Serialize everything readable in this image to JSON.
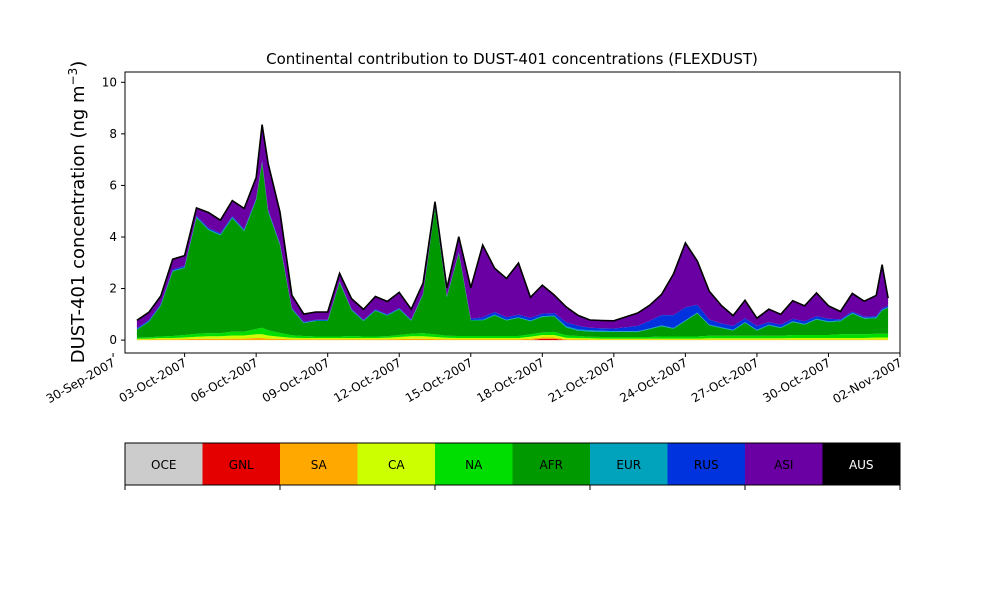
{
  "chart_data": {
    "type": "area",
    "stacked": true,
    "title": "Continental contribution to DUST-401 concentrations (FLEXDUST)",
    "ylabel": "DUST-401 concentration (ng m",
    "ylabel_superscript": "−3",
    "ylabel_tail": ")",
    "xlabel": "",
    "xlim": [
      "2007-09-30T12:00",
      "2007-11-02T00:00"
    ],
    "ylim": [
      -0.5,
      10.4
    ],
    "y_ticks": [
      0,
      2,
      4,
      6,
      8,
      10
    ],
    "x_ticks": [
      "30-Sep-2007",
      "03-Oct-2007",
      "06-Oct-2007",
      "09-Oct-2007",
      "12-Oct-2007",
      "15-Oct-2007",
      "18-Oct-2007",
      "21-Oct-2007",
      "24-Oct-2007",
      "27-Oct-2007",
      "30-Oct-2007",
      "02-Nov-2007"
    ],
    "grid": false,
    "categories_legend": [
      "OCE",
      "GNL",
      "SA",
      "CA",
      "NA",
      "AFR",
      "EUR",
      "RUS",
      "ASI",
      "AUS"
    ],
    "series_colors": {
      "OCE": "#cccccc",
      "GNL": "#e50000",
      "SA": "#ffa900",
      "CA": "#ccff00",
      "NA": "#00dd00",
      "AFR": "#009900",
      "EUR": "#00a3bb",
      "RUS": "#0033dd",
      "ASI": "#6a00a3",
      "AUS": "#000000"
    },
    "total_line_color": "#000000",
    "x": [
      "2007-10-01",
      "2007-10-01T12:00",
      "2007-10-02",
      "2007-10-02T12:00",
      "2007-10-03",
      "2007-10-03T12:00",
      "2007-10-04",
      "2007-10-04T12:00",
      "2007-10-05",
      "2007-10-05T12:00",
      "2007-10-06",
      "2007-10-06T06:00",
      "2007-10-06T12:00",
      "2007-10-07",
      "2007-10-07T12:00",
      "2007-10-08",
      "2007-10-08T12:00",
      "2007-10-09",
      "2007-10-09T12:00",
      "2007-10-10",
      "2007-10-10T12:00",
      "2007-10-11",
      "2007-10-11T12:00",
      "2007-10-12",
      "2007-10-12T12:00",
      "2007-10-13",
      "2007-10-13T12:00",
      "2007-10-14",
      "2007-10-14T12:00",
      "2007-10-15",
      "2007-10-15T12:00",
      "2007-10-16",
      "2007-10-16T12:00",
      "2007-10-17",
      "2007-10-17T12:00",
      "2007-10-18",
      "2007-10-18T12:00",
      "2007-10-19",
      "2007-10-19T12:00",
      "2007-10-20",
      "2007-10-20T12:00",
      "2007-10-21",
      "2007-10-21T12:00",
      "2007-10-22",
      "2007-10-22T12:00",
      "2007-10-23",
      "2007-10-23T12:00",
      "2007-10-24",
      "2007-10-24T12:00",
      "2007-10-25",
      "2007-10-25T12:00",
      "2007-10-26",
      "2007-10-26T12:00",
      "2007-10-27",
      "2007-10-27T12:00",
      "2007-10-28",
      "2007-10-28T12:00",
      "2007-10-29",
      "2007-10-29T12:00",
      "2007-10-30",
      "2007-10-30T12:00",
      "2007-10-31",
      "2007-10-31T12:00",
      "2007-11-01",
      "2007-11-01T06:00",
      "2007-11-01T12:00"
    ],
    "series": [
      {
        "name": "OCE",
        "values": [
          0,
          0,
          0,
          0,
          0,
          0,
          0,
          0,
          0,
          0,
          0,
          0,
          0,
          0,
          0,
          0,
          0,
          0,
          0,
          0,
          0,
          0,
          0,
          0,
          0,
          0,
          0,
          0,
          0,
          0,
          0,
          0,
          0,
          0,
          0,
          0,
          0,
          0,
          0,
          0,
          0,
          0,
          0,
          0,
          0,
          0,
          0,
          0,
          0,
          0,
          0,
          0,
          0,
          0,
          0,
          0,
          0,
          0,
          0,
          0,
          0,
          0,
          0,
          0,
          0,
          0
        ]
      },
      {
        "name": "GNL",
        "values": [
          0,
          0,
          0,
          0,
          0,
          0,
          0,
          0,
          0,
          0,
          0,
          0,
          0,
          0,
          0,
          0,
          0,
          0,
          0,
          0,
          0,
          0,
          0,
          0,
          0,
          0,
          0,
          0,
          0,
          0,
          0,
          0,
          0,
          0,
          0,
          0.05,
          0.05,
          0,
          0,
          0,
          0,
          0,
          0,
          0,
          0,
          0,
          0,
          0,
          0,
          0,
          0,
          0,
          0,
          0,
          0,
          0,
          0,
          0,
          0,
          0,
          0,
          0,
          0,
          0,
          0,
          0
        ]
      },
      {
        "name": "SA",
        "values": [
          0.02,
          0.02,
          0.03,
          0.03,
          0.04,
          0.05,
          0.05,
          0.05,
          0.06,
          0.06,
          0.08,
          0.08,
          0.06,
          0.05,
          0.03,
          0.03,
          0.03,
          0.03,
          0.03,
          0.03,
          0.03,
          0.03,
          0.03,
          0.04,
          0.05,
          0.05,
          0.04,
          0.03,
          0.03,
          0.03,
          0.03,
          0.03,
          0.03,
          0.03,
          0.05,
          0.05,
          0.05,
          0.03,
          0.03,
          0.02,
          0.02,
          0.02,
          0.02,
          0.02,
          0.02,
          0.02,
          0.02,
          0.02,
          0.02,
          0.02,
          0.02,
          0.02,
          0.02,
          0.02,
          0.02,
          0.02,
          0.02,
          0.02,
          0.02,
          0.02,
          0.02,
          0.02,
          0.02,
          0.02,
          0.02,
          0.02
        ]
      },
      {
        "name": "CA",
        "values": [
          0.03,
          0.04,
          0.05,
          0.05,
          0.06,
          0.08,
          0.1,
          0.1,
          0.12,
          0.12,
          0.15,
          0.15,
          0.12,
          0.08,
          0.06,
          0.05,
          0.05,
          0.05,
          0.05,
          0.05,
          0.05,
          0.05,
          0.06,
          0.08,
          0.1,
          0.1,
          0.08,
          0.06,
          0.05,
          0.05,
          0.05,
          0.05,
          0.05,
          0.05,
          0.08,
          0.1,
          0.1,
          0.06,
          0.05,
          0.05,
          0.04,
          0.04,
          0.04,
          0.04,
          0.04,
          0.04,
          0.04,
          0.04,
          0.04,
          0.05,
          0.05,
          0.05,
          0.05,
          0.05,
          0.05,
          0.05,
          0.06,
          0.06,
          0.06,
          0.06,
          0.06,
          0.06,
          0.06,
          0.08,
          0.08,
          0.08
        ]
      },
      {
        "name": "NA",
        "values": [
          0.05,
          0.05,
          0.06,
          0.08,
          0.1,
          0.12,
          0.12,
          0.12,
          0.15,
          0.15,
          0.2,
          0.25,
          0.2,
          0.15,
          0.1,
          0.08,
          0.06,
          0.06,
          0.06,
          0.08,
          0.06,
          0.06,
          0.06,
          0.08,
          0.1,
          0.12,
          0.1,
          0.08,
          0.08,
          0.08,
          0.08,
          0.08,
          0.08,
          0.08,
          0.1,
          0.1,
          0.12,
          0.1,
          0.08,
          0.06,
          0.06,
          0.06,
          0.06,
          0.06,
          0.06,
          0.08,
          0.08,
          0.08,
          0.08,
          0.1,
          0.1,
          0.1,
          0.1,
          0.1,
          0.1,
          0.1,
          0.12,
          0.12,
          0.12,
          0.12,
          0.15,
          0.15,
          0.15,
          0.15,
          0.15,
          0.15
        ]
      },
      {
        "name": "AFR",
        "values": [
          0.3,
          0.6,
          1.2,
          2.5,
          2.6,
          4.5,
          4.0,
          3.8,
          4.4,
          3.9,
          5.0,
          6.4,
          4.6,
          3.4,
          1.0,
          0.5,
          0.6,
          0.6,
          2.1,
          1.0,
          0.6,
          1.0,
          0.8,
          1.0,
          0.5,
          1.5,
          4.9,
          1.5,
          3.2,
          0.6,
          0.6,
          0.8,
          0.6,
          0.7,
          0.5,
          0.6,
          0.6,
          0.3,
          0.2,
          0.2,
          0.2,
          0.2,
          0.2,
          0.2,
          0.3,
          0.4,
          0.3,
          0.6,
          0.9,
          0.4,
          0.3,
          0.2,
          0.5,
          0.2,
          0.4,
          0.3,
          0.5,
          0.4,
          0.6,
          0.5,
          0.5,
          0.8,
          0.6,
          0.6,
          0.9,
          1.0
        ]
      },
      {
        "name": "EUR",
        "values": [
          0.02,
          0.02,
          0.02,
          0.03,
          0.03,
          0.03,
          0.03,
          0.03,
          0.03,
          0.03,
          0.03,
          0.03,
          0.03,
          0.03,
          0.02,
          0.02,
          0.02,
          0.02,
          0.02,
          0.02,
          0.02,
          0.02,
          0.02,
          0.02,
          0.02,
          0.02,
          0.02,
          0.02,
          0.02,
          0.02,
          0.03,
          0.03,
          0.03,
          0.03,
          0.03,
          0.03,
          0.03,
          0.05,
          0.05,
          0.05,
          0.04,
          0.03,
          0.03,
          0.03,
          0.03,
          0.03,
          0.03,
          0.03,
          0.03,
          0.03,
          0.03,
          0.03,
          0.03,
          0.03,
          0.03,
          0.03,
          0.03,
          0.03,
          0.03,
          0.03,
          0.03,
          0.03,
          0.03,
          0.03,
          0.03,
          0.03
        ]
      },
      {
        "name": "RUS",
        "values": [
          0.05,
          0.05,
          0.05,
          0.05,
          0.05,
          0.05,
          0.05,
          0.05,
          0.05,
          0.05,
          0.05,
          0.05,
          0.05,
          0.05,
          0.03,
          0.03,
          0.03,
          0.03,
          0.03,
          0.03,
          0.03,
          0.03,
          0.03,
          0.03,
          0.03,
          0.03,
          0.03,
          0.03,
          0.03,
          0.05,
          0.1,
          0.1,
          0.1,
          0.1,
          0.1,
          0.1,
          0.1,
          0.15,
          0.15,
          0.1,
          0.1,
          0.1,
          0.15,
          0.2,
          0.3,
          0.4,
          0.5,
          0.5,
          0.3,
          0.2,
          0.15,
          0.15,
          0.15,
          0.15,
          0.1,
          0.1,
          0.1,
          0.1,
          0.1,
          0.1,
          0.05,
          0.05,
          0.05,
          0.05,
          0.05,
          0.05
        ]
      },
      {
        "name": "ASI",
        "values": [
          0.3,
          0.3,
          0.3,
          0.4,
          0.4,
          0.3,
          0.6,
          0.5,
          0.6,
          0.8,
          0.8,
          1.4,
          1.8,
          1.2,
          0.5,
          0.3,
          0.3,
          0.3,
          0.3,
          0.4,
          0.4,
          0.5,
          0.5,
          0.6,
          0.4,
          0.4,
          0.2,
          0.3,
          0.6,
          1.2,
          2.8,
          1.7,
          1.5,
          2.0,
          0.8,
          1.1,
          0.7,
          0.6,
          0.4,
          0.3,
          0.3,
          0.3,
          0.4,
          0.5,
          0.6,
          0.8,
          1.6,
          2.5,
          1.7,
          1.1,
          0.7,
          0.4,
          0.7,
          0.3,
          0.5,
          0.4,
          0.7,
          0.6,
          0.9,
          0.5,
          0.3,
          0.7,
          0.6,
          0.8,
          1.7,
          0.3
        ]
      },
      {
        "name": "AUS",
        "values": [
          0,
          0,
          0,
          0,
          0,
          0,
          0,
          0,
          0,
          0,
          0,
          0,
          0,
          0,
          0,
          0,
          0,
          0,
          0,
          0,
          0,
          0,
          0,
          0,
          0,
          0,
          0,
          0,
          0,
          0,
          0,
          0,
          0,
          0,
          0,
          0,
          0,
          0,
          0,
          0,
          0,
          0,
          0,
          0,
          0,
          0,
          0,
          0,
          0,
          0,
          0,
          0,
          0,
          0,
          0,
          0,
          0,
          0,
          0,
          0,
          0,
          0,
          0,
          0,
          0,
          0
        ]
      }
    ]
  }
}
